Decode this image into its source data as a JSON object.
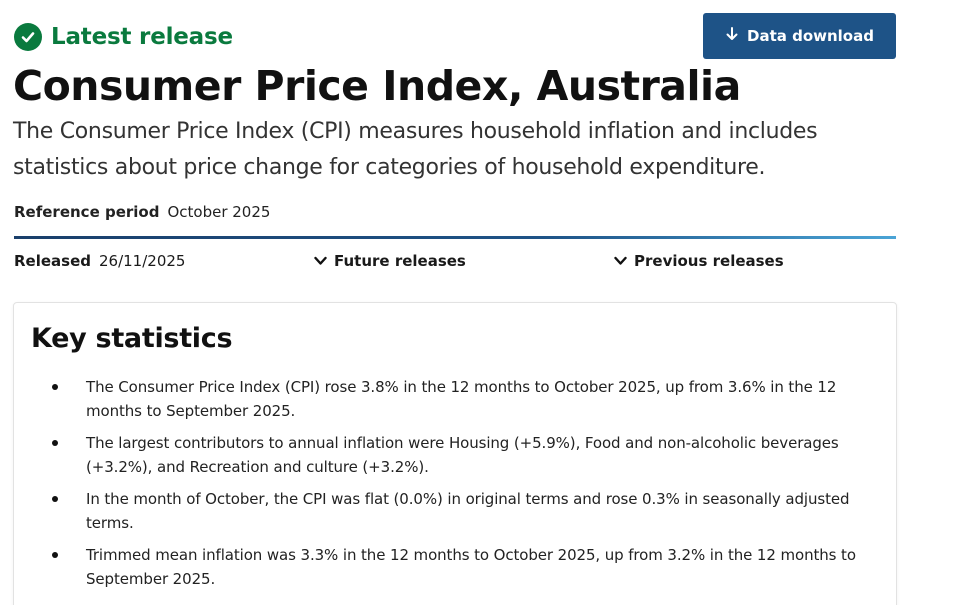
{
  "status": {
    "label": "Latest release",
    "color": "#0a7a3e",
    "icon": "check-circle-icon"
  },
  "download_button": {
    "label": "Data download",
    "icon": "arrow-down-icon",
    "color": "#1e5387"
  },
  "title": "Consumer Price Index, Australia",
  "summary": "The Consumer Price Index (CPI) measures household inflation and includes statistics about price change for categories of household expenditure.",
  "reference_period": {
    "label": "Reference period",
    "value": "October 2025"
  },
  "released": {
    "label": "Released",
    "value": "26/11/2025"
  },
  "future_releases": {
    "label": "Future releases",
    "icon": "chevron-down-icon"
  },
  "previous_releases": {
    "label": "Previous releases",
    "icon": "chevron-down-icon"
  },
  "key_statistics": {
    "heading": "Key statistics",
    "items": [
      "The Consumer Price Index (CPI) rose 3.8% in the 12 months to October 2025, up from 3.6% in the 12 months to September 2025.",
      "The largest contributors to annual inflation were Housing (+5.9%), Food and non-alcoholic beverages (+3.2%), and Recreation and culture (+3.2%).",
      "In the month of October, the CPI was flat (0.0%) in original terms and rose 0.3% in seasonally adjusted terms.",
      "Trimmed mean inflation was 3.3% in the 12 months to October 2025, up from 3.2% in the 12 months to September 2025."
    ]
  }
}
